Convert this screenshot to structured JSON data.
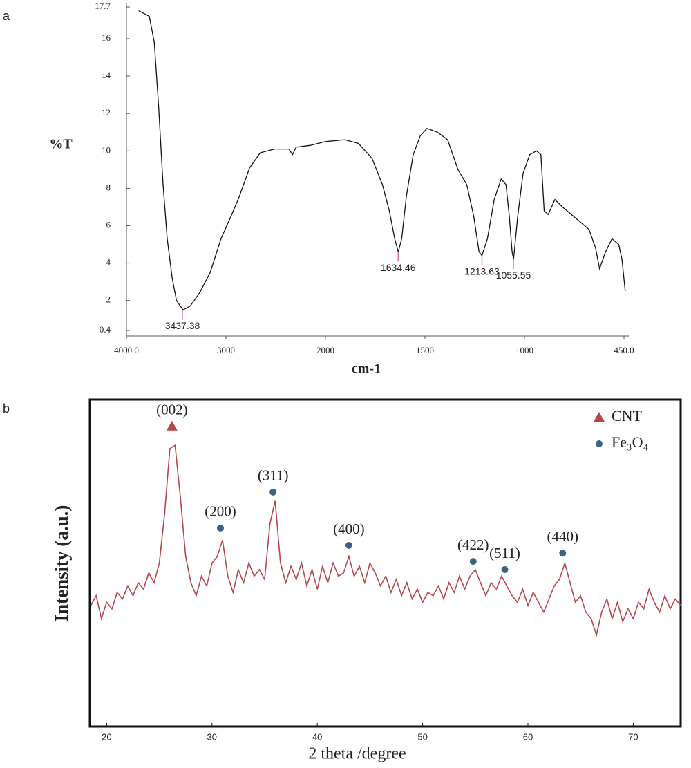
{
  "chart_data": [
    {
      "type": "line",
      "panel": "a",
      "xlabel": "cm-1",
      "ylabel": "%T",
      "color": "#111111",
      "peak_color": "#e0788a",
      "xlim": [
        4000,
        450
      ],
      "ylim": [
        0.4,
        17.7
      ],
      "xticks": [
        {
          "value": 4000,
          "label": "4000.0"
        },
        3000,
        2000,
        1500,
        1000,
        {
          "value": 450,
          "label": "450.0"
        }
      ],
      "yticks": [
        0.4,
        2,
        4,
        6,
        8,
        10,
        12,
        14,
        16,
        17.7
      ],
      "x": [
        3878,
        3770,
        3720,
        3676,
        3633,
        3590,
        3540,
        3497,
        3432,
        3360,
        3266,
        3158,
        3050,
        2942,
        2870,
        2762,
        2655,
        2511,
        2367,
        2331,
        2295,
        2151,
        2000,
        1903,
        1834,
        1766,
        1714,
        1679,
        1652,
        1634,
        1617,
        1593,
        1559,
        1524,
        1490,
        1438,
        1386,
        1334,
        1290,
        1255,
        1228,
        1214,
        1186,
        1152,
        1117,
        1093,
        1076,
        1062,
        1055,
        1034,
        1007,
        971,
        934,
        909,
        891,
        869,
        832,
        789,
        716,
        643,
        607,
        585,
        552,
        516,
        479,
        461,
        443
      ],
      "values": [
        17.5,
        17.2,
        15.8,
        12.3,
        8.3,
        5.3,
        3.2,
        2.0,
        1.5,
        1.7,
        2.4,
        3.5,
        5.3,
        6.6,
        7.5,
        9.1,
        9.9,
        10.1,
        10.1,
        9.8,
        10.2,
        10.3,
        10.5,
        10.6,
        10.4,
        9.6,
        8.2,
        6.8,
        5.3,
        4.6,
        5.3,
        7.6,
        9.8,
        10.8,
        11.2,
        11.0,
        10.6,
        9.0,
        8.2,
        6.5,
        4.6,
        4.4,
        5.3,
        7.4,
        8.5,
        8.2,
        6.5,
        4.6,
        4.2,
        6.5,
        8.8,
        9.8,
        10.0,
        9.8,
        6.8,
        6.6,
        7.4,
        7.0,
        6.4,
        5.8,
        4.8,
        3.7,
        4.6,
        5.3,
        5.0,
        4.2,
        2.5
      ],
      "peaks": [
        {
          "x": 3437.38,
          "y": 1.5
        },
        {
          "x": 1634.46,
          "y": 4.6
        },
        {
          "x": 1213.63,
          "y": 4.4
        },
        {
          "x": 1055.55,
          "y": 4.2
        }
      ]
    },
    {
      "type": "line",
      "panel": "b",
      "xlabel": "2 theta /degree",
      "ylabel": "Intensity (a.u.)",
      "color": "#b5474b",
      "xlim": [
        18.4,
        74.5
      ],
      "ylim": [
        0,
        100
      ],
      "xticks": [
        20,
        30,
        40,
        50,
        60,
        70
      ],
      "x": [
        18.5,
        19,
        19.5,
        20,
        20.5,
        21,
        21.5,
        22,
        22.5,
        23,
        23.5,
        24,
        24.5,
        25,
        25.5,
        26,
        26.5,
        27,
        27.5,
        28,
        28.5,
        29,
        29.5,
        30,
        30.5,
        31,
        31.5,
        32,
        32.5,
        33,
        33.5,
        34,
        34.5,
        35,
        35.5,
        36,
        36.5,
        37,
        37.5,
        38,
        38.5,
        39,
        39.5,
        40,
        40.5,
        41,
        41.5,
        42,
        42.5,
        43,
        43.5,
        44,
        44.5,
        45,
        45.5,
        46,
        46.5,
        47,
        47.5,
        48,
        48.5,
        49,
        49.5,
        50,
        50.5,
        51,
        51.5,
        52,
        52.5,
        53,
        53.5,
        54,
        54.5,
        55,
        55.5,
        56,
        56.5,
        57,
        57.5,
        58,
        58.5,
        59,
        59.5,
        60,
        60.5,
        61,
        61.5,
        62,
        62.5,
        63,
        63.5,
        64,
        64.5,
        65,
        65.5,
        66,
        66.5,
        67,
        67.5,
        68,
        68.5,
        69,
        69.5,
        70,
        70.5,
        71,
        71.5,
        72,
        72.5,
        73,
        73.5,
        74,
        74.5
      ],
      "values": [
        37,
        40,
        33,
        38,
        36,
        41,
        39,
        43,
        40,
        44,
        42,
        47,
        44,
        50,
        65,
        85,
        86,
        70,
        52,
        44,
        40,
        46,
        43,
        50,
        52,
        57,
        46,
        41,
        48,
        44,
        50,
        46,
        48,
        45,
        62,
        69,
        50,
        44,
        49,
        45,
        50,
        43,
        48,
        42,
        49,
        44,
        50,
        46,
        47,
        52,
        46,
        49,
        44,
        50,
        47,
        43,
        46,
        41,
        45,
        40,
        44,
        39,
        42,
        38,
        41,
        40,
        43,
        39,
        44,
        41,
        46,
        42,
        46,
        48,
        44,
        40,
        44,
        42,
        46,
        43,
        40,
        38,
        42,
        37,
        41,
        38,
        35,
        39,
        43,
        45,
        50,
        44,
        38,
        40,
        35,
        33,
        28,
        35,
        39,
        33,
        38,
        32,
        36,
        33,
        38,
        36,
        42,
        38,
        35,
        40,
        36,
        39,
        37
      ],
      "phases": [
        {
          "name": "CNT",
          "color": "#b5474b",
          "marker": "triangle"
        },
        {
          "name": "Fe₃O₄",
          "color": "#3b6484",
          "marker": "circle"
        }
      ],
      "annotations": [
        {
          "label": "(002)",
          "x": 26.2,
          "y": 91.8,
          "phase": "CNT"
        },
        {
          "label": "(200)",
          "x": 30.8,
          "y": 60.7,
          "phase": "Fe₃O₄"
        },
        {
          "label": "(311)",
          "x": 35.8,
          "y": 71.7,
          "phase": "Fe₃O₄"
        },
        {
          "label": "(400)",
          "x": 43.0,
          "y": 55.4,
          "phase": "Fe₃O₄"
        },
        {
          "label": "(422)",
          "x": 54.8,
          "y": 50.5,
          "phase": "Fe₃O₄"
        },
        {
          "label": "(511)",
          "x": 57.8,
          "y": 48,
          "phase": "Fe₃O₄"
        },
        {
          "label": "(440)",
          "x": 63.3,
          "y": 53,
          "phase": "Fe₃O₄"
        }
      ]
    }
  ]
}
